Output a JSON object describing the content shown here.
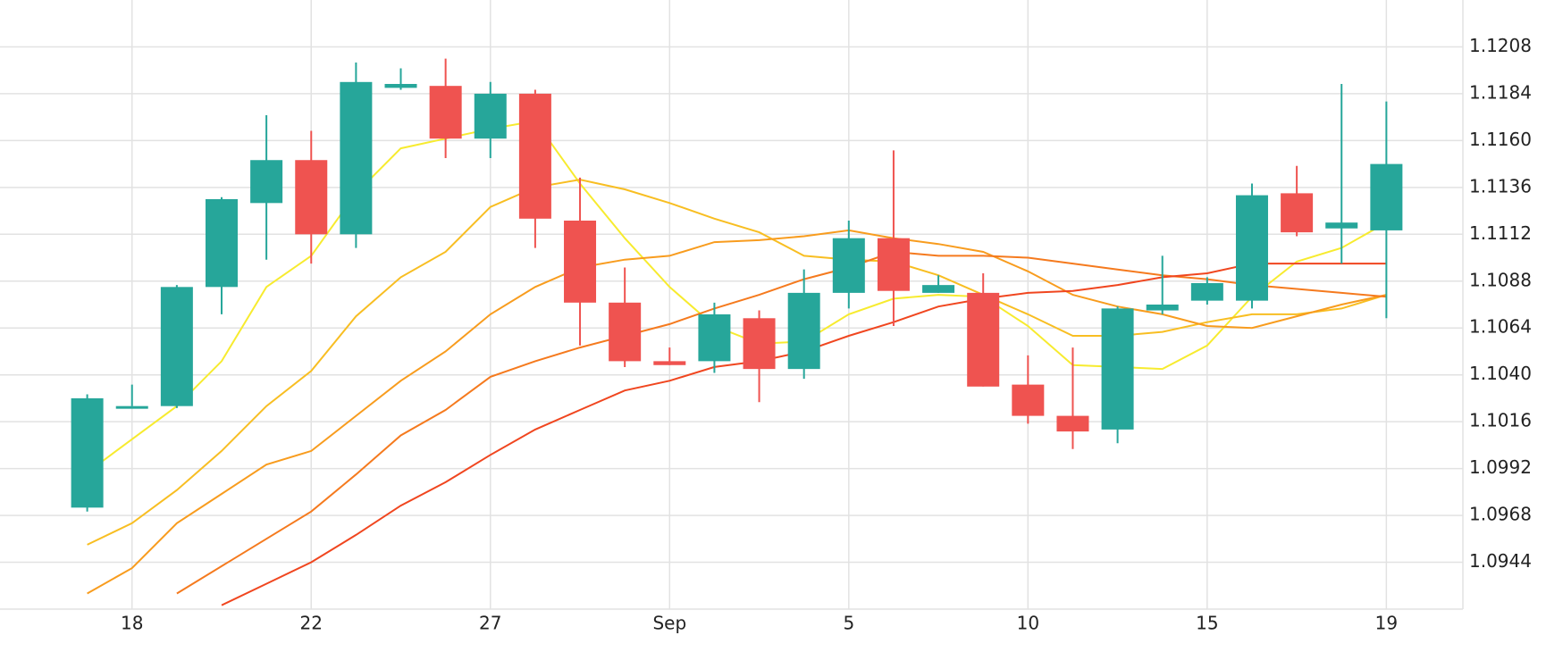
{
  "chart_data": {
    "type": "candlestick",
    "categories": [
      null,
      "18",
      null,
      null,
      null,
      "22",
      null,
      null,
      null,
      "27",
      null,
      null,
      null,
      "Sep",
      null,
      null,
      null,
      "5",
      null,
      null,
      null,
      "10",
      null,
      null,
      null,
      "15",
      null,
      null,
      null,
      "19"
    ],
    "open": [
      1.0972,
      1.1024,
      1.1024,
      1.1085,
      1.1128,
      1.115,
      1.1112,
      1.1187,
      1.1188,
      1.1161,
      1.1184,
      1.1119,
      1.1077,
      1.1047,
      1.1047,
      1.1069,
      1.1043,
      1.1082,
      1.111,
      1.1082,
      1.1082,
      1.1035,
      1.1019,
      1.1012,
      1.1073,
      1.1078,
      1.1078,
      1.1133,
      1.1115,
      1.1114
    ],
    "high": [
      1.103,
      1.1035,
      1.1086,
      1.1131,
      1.1173,
      1.1165,
      1.12,
      1.1197,
      1.1202,
      1.119,
      1.1186,
      1.1141,
      1.1095,
      1.1054,
      1.1077,
      1.1073,
      1.1094,
      1.1119,
      1.1155,
      1.1091,
      1.1092,
      1.105,
      1.1054,
      1.1075,
      1.1101,
      1.109,
      1.1138,
      1.1147,
      1.1189,
      1.118
    ],
    "low": [
      1.097,
      1.1024,
      1.1023,
      1.1071,
      1.1099,
      1.1097,
      1.1105,
      1.1186,
      1.1151,
      1.1151,
      1.1105,
      1.1055,
      1.1044,
      1.1045,
      1.1041,
      1.1026,
      1.1038,
      1.1074,
      1.1065,
      1.1082,
      1.1034,
      1.1015,
      1.1002,
      1.1005,
      1.1071,
      1.1076,
      1.1074,
      1.1111,
      1.1097,
      1.1069
    ],
    "close": [
      1.1028,
      1.1024,
      1.1085,
      1.113,
      1.115,
      1.1112,
      1.119,
      1.1189,
      1.1161,
      1.1184,
      1.112,
      1.1077,
      1.1047,
      1.1045,
      1.1071,
      1.1043,
      1.1082,
      1.111,
      1.1083,
      1.1086,
      1.1034,
      1.1019,
      1.1011,
      1.1074,
      1.1076,
      1.1087,
      1.1132,
      1.1113,
      1.1118,
      1.1148
    ],
    "up_color": "#26a69a",
    "down_color": "#ef5350",
    "series": [
      {
        "color": "#f7eb2f",
        "values": [
          1.099,
          1.1007,
          1.1024,
          1.1047,
          1.1085,
          1.1101,
          1.1133,
          1.1156,
          1.1161,
          1.1166,
          1.117,
          1.1138,
          1.111,
          1.1085,
          1.1065,
          1.1056,
          1.1057,
          1.1071,
          1.1079,
          1.1081,
          1.108,
          1.1065,
          1.1045,
          1.1044,
          1.1043,
          1.1055,
          1.108,
          1.1098,
          1.1105,
          1.1118
        ]
      },
      {
        "color": "#f8be22",
        "values": [
          1.0953,
          1.0964,
          1.0981,
          1.1001,
          1.1024,
          1.1042,
          1.107,
          1.109,
          1.1103,
          1.1126,
          1.1136,
          1.114,
          1.1135,
          1.1128,
          1.112,
          1.1113,
          1.1101,
          1.1099,
          1.1098,
          1.1091,
          1.1081,
          1.1071,
          1.106,
          1.106,
          1.1062,
          1.1067,
          1.1071,
          1.1071,
          1.1074,
          1.1081
        ]
      },
      {
        "color": "#f89c1e",
        "values": [
          1.0928,
          1.0941,
          1.0964,
          1.0979,
          1.0994,
          1.1001,
          1.1019,
          1.1037,
          1.1052,
          1.1071,
          1.1085,
          1.1095,
          1.1099,
          1.1101,
          1.1108,
          1.1109,
          1.1111,
          1.1114,
          1.111,
          1.1107,
          1.1103,
          1.1093,
          1.1081,
          1.1075,
          1.1071,
          1.1065,
          1.1064,
          1.107,
          1.1076,
          1.1081
        ]
      },
      {
        "color": "#f57a1e",
        "values": [
          null,
          null,
          1.0928,
          1.0942,
          1.0956,
          1.097,
          1.0989,
          1.1009,
          1.1022,
          1.1039,
          1.1047,
          1.1054,
          1.106,
          1.1066,
          1.1074,
          1.1081,
          1.1089,
          1.1095,
          1.1103,
          1.1101,
          1.1101,
          1.11,
          1.1097,
          1.1094,
          1.1091,
          1.1089,
          1.1086,
          1.1084,
          1.1082,
          1.108
        ]
      },
      {
        "color": "#f0461f",
        "values": [
          null,
          null,
          null,
          1.0922,
          1.0933,
          1.0944,
          1.0958,
          1.0973,
          1.0985,
          1.0999,
          1.1012,
          1.1022,
          1.1032,
          1.1037,
          1.1044,
          1.1047,
          1.1052,
          1.106,
          1.1067,
          1.1075,
          1.1079,
          1.1082,
          1.1083,
          1.1086,
          1.109,
          1.1092,
          1.1097,
          1.1097,
          1.1097,
          1.1097
        ]
      }
    ],
    "ylim": [
      1.092,
      1.1232
    ],
    "yticks": [
      1.0944,
      1.0968,
      1.0992,
      1.1016,
      {
        "value": 1.104,
        "label": "1.1040"
      },
      1.1064,
      1.1088,
      1.1112,
      1.1136,
      {
        "value": 1.116,
        "label": "1.1160"
      },
      1.1184,
      1.1208
    ],
    "grid": true
  }
}
